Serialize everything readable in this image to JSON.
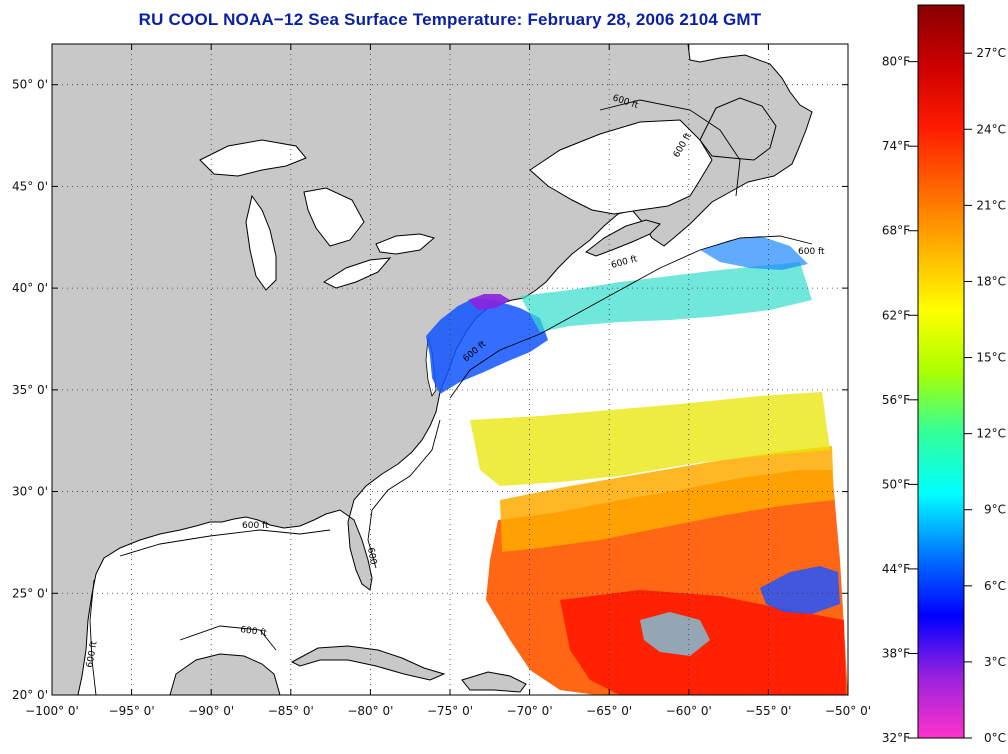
{
  "title": "RU COOL  NOAA−12  Sea Surface Temperature:  February 28, 2006 2104 GMT",
  "map": {
    "lon_range": [
      -100,
      -50
    ],
    "lat_range": [
      20,
      52
    ],
    "lat_ticks": [
      {
        "value": 50,
        "label": "50° 0'"
      },
      {
        "value": 45,
        "label": "45° 0'"
      },
      {
        "value": 40,
        "label": "40° 0'"
      },
      {
        "value": 35,
        "label": "35° 0'"
      },
      {
        "value": 30,
        "label": "30° 0'"
      },
      {
        "value": 25,
        "label": "25° 0'"
      },
      {
        "value": 20,
        "label": "20° 0'"
      }
    ],
    "lon_ticks": [
      {
        "value": -100,
        "label": "−100° 0'"
      },
      {
        "value": -95,
        "label": "−95° 0'"
      },
      {
        "value": -90,
        "label": "−90° 0'"
      },
      {
        "value": -85,
        "label": "−85° 0'"
      },
      {
        "value": -80,
        "label": "−80° 0'"
      },
      {
        "value": -75,
        "label": "−75° 0'"
      },
      {
        "value": -70,
        "label": "−70° 0'"
      },
      {
        "value": -65,
        "label": "−65° 0'"
      },
      {
        "value": -60,
        "label": "−60° 0'"
      },
      {
        "value": -55,
        "label": "−55° 0'"
      },
      {
        "value": -50,
        "label": "−50° 0'"
      }
    ],
    "isobath_labels": [
      "600 ft",
      "600 ft",
      "600 ft",
      "600 ft",
      "600 ft",
      "600",
      "600 ft",
      "600 ft",
      "600 ft"
    ],
    "colors": {
      "land": "#c8c8c8",
      "ocean": "#ffffff",
      "coast": "#000000",
      "grid": "#333333"
    }
  },
  "colorbar": {
    "fahrenheit": [
      {
        "value": 80,
        "label": "80°F"
      },
      {
        "value": 74,
        "label": "74°F"
      },
      {
        "value": 68,
        "label": "68°F"
      },
      {
        "value": 62,
        "label": "62°F"
      },
      {
        "value": 56,
        "label": "56°F"
      },
      {
        "value": 50,
        "label": "50°F"
      },
      {
        "value": 44,
        "label": "44°F"
      },
      {
        "value": 38,
        "label": "38°F"
      },
      {
        "value": 32,
        "label": "32°F"
      }
    ],
    "celsius": [
      {
        "value": 27,
        "label": "27°C"
      },
      {
        "value": 24,
        "label": "24°C"
      },
      {
        "value": 21,
        "label": "21°C"
      },
      {
        "value": 18,
        "label": "18°C"
      },
      {
        "value": 15,
        "label": "15°C"
      },
      {
        "value": 12,
        "label": "12°C"
      },
      {
        "value": 9,
        "label": "9°C"
      },
      {
        "value": 6,
        "label": "6°C"
      },
      {
        "value": 3,
        "label": "3°C"
      },
      {
        "value": 0,
        "label": "0°C"
      }
    ],
    "range_c": [
      0,
      28.9
    ],
    "stops": [
      "#ff33cc",
      "#9922dd",
      "#0000ff",
      "#0077ff",
      "#00ffff",
      "#33ff99",
      "#aaff00",
      "#ffff00",
      "#ffb300",
      "#ff6600",
      "#ff1a00",
      "#cc0000",
      "#880000"
    ]
  }
}
